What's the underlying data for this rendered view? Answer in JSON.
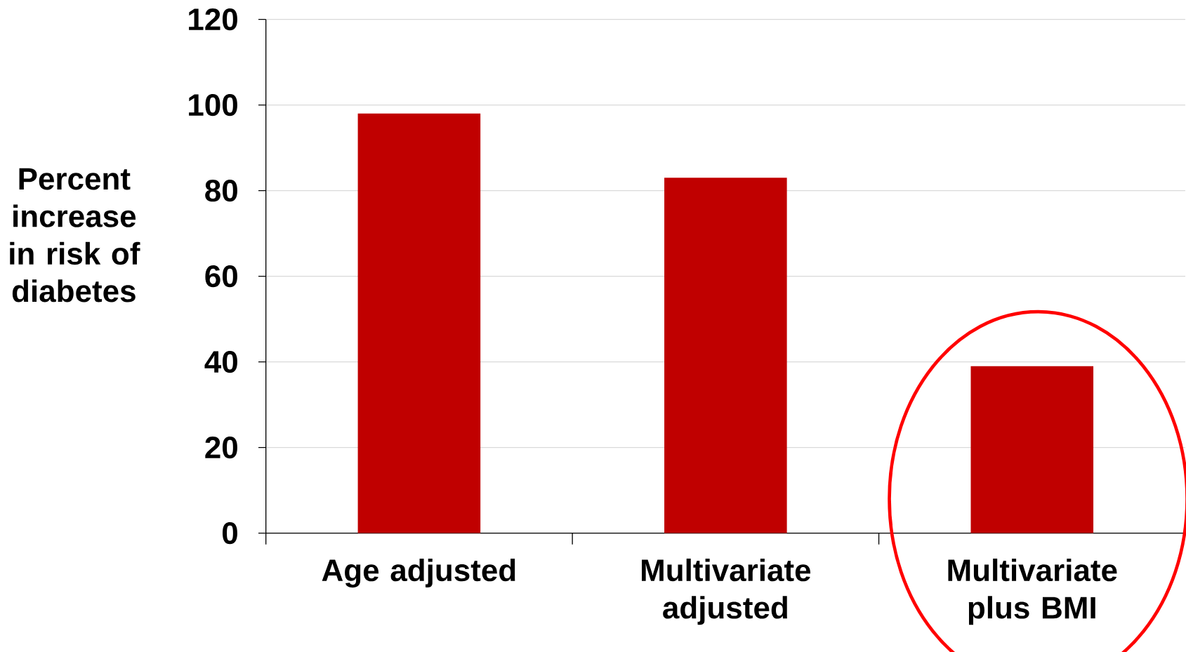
{
  "chart_data": {
    "type": "bar",
    "ylabel": "Percent increase in risk of diabetes",
    "categories": [
      "Age adjusted",
      "Multivariate adjusted",
      "Multivariate plus BMI"
    ],
    "values": [
      98,
      83,
      39
    ],
    "color": "#c00000",
    "ylim": [
      0,
      120
    ],
    "yticks": [
      0,
      20,
      40,
      60,
      80,
      100,
      120
    ],
    "grid": "y"
  }
}
